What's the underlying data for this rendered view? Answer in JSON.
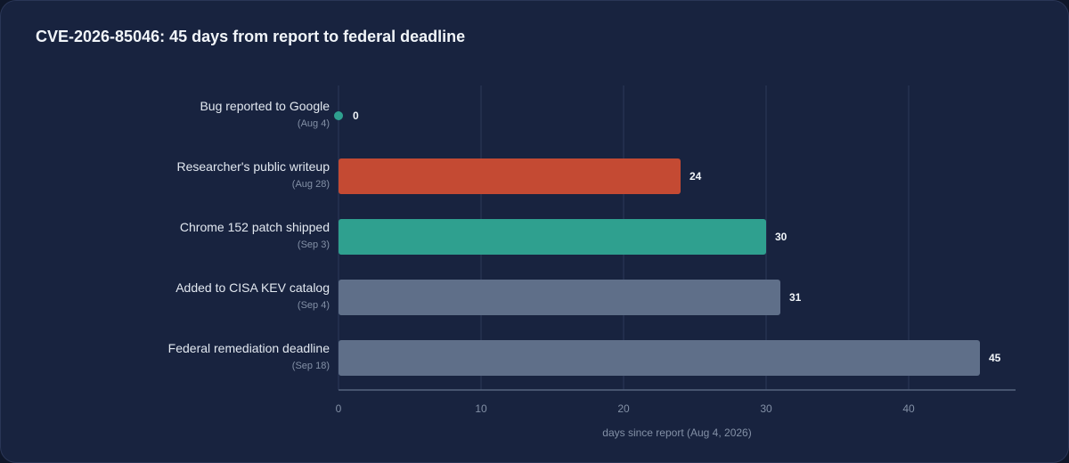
{
  "chart_data": {
    "type": "bar",
    "orientation": "horizontal",
    "title": "CVE-2026-85046: 45 days from report to federal deadline",
    "xlabel": "days since report (Aug 4, 2026)",
    "ylabel": "",
    "xlim": [
      0,
      47.5
    ],
    "x_ticks": [
      0,
      10,
      20,
      30,
      40
    ],
    "grid": true,
    "categories": [
      "Bug reported to Google",
      "Researcher's public writeup",
      "Chrome 152 patch shipped",
      "Added to CISA KEV catalog",
      "Federal remediation deadline"
    ],
    "sublabels": [
      "(Aug 4)",
      "(Aug 28)",
      "(Sep 3)",
      "(Sep 4)",
      "(Sep 18)"
    ],
    "values": [
      0,
      24,
      30,
      31,
      45
    ],
    "colors": [
      "#2fa08f",
      "#c44a33",
      "#2fa08f",
      "#5f6f89",
      "#5f6f89"
    ]
  },
  "colors": {
    "background": "#18233f",
    "gridline": "#2c3a5a",
    "axis": "#56657f"
  }
}
